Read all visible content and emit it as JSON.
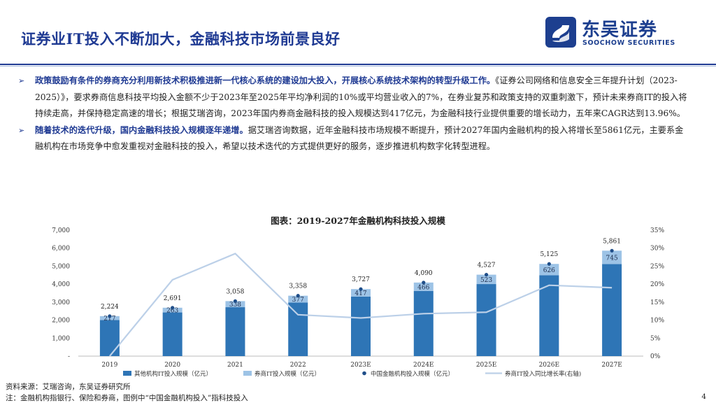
{
  "header": {
    "title": "证券业IT投入不断加大，金融科技市场前景良好",
    "logo_cn": "东吴证券",
    "logo_en": "SOOCHOW SECURITIES",
    "accent": "#1f3a93"
  },
  "bullets": [
    {
      "highlight": "政策鼓励有条件的券商充分利用新技术积极推进新一代核心系统的建设加大投入，开展核心系统技术架构的转型升级工作。",
      "text": "《证券公司网络和信息安全三年提升计划（2023-2025）》，要求券商信息科技平均投入金额不少于2023年至2025年平均净利润的10%或平均营业收入的7%，在券业复苏和政策支持的双重刺激下，预计未来券商IT的投入将持续走高，并保持稳定高速的增长；根据艾瑞咨询，2023年国内券商金融科技的投入规模达到417亿元，为金融科技行业提供重要的增长动力，五年来CAGR达到13.96%。"
    },
    {
      "highlight": "随着技术的迭代升级，国内金融科技投入规模逐年递增。",
      "text": "据艾瑞咨询数据，近年金融科技市场规模不断提升，预计2027年国内金融机构的投入将增长至5861亿元，主要系金融机构在市场竞争中愈发重视对金融科技的投入，希望以技术迭代的方式提供更好的服务，逐步推进机构数字化转型进程。"
    }
  ],
  "chart_title": "图表：2019-2027年金融机构科技投入规模",
  "chart_data": {
    "type": "bar",
    "categories": [
      "2019",
      "2020",
      "2021",
      "2022",
      "2023E",
      "2024E",
      "2025E",
      "2026E",
      "2027E"
    ],
    "series": [
      {
        "name": "其他机构IT投入规模（亿元）",
        "values": [
          2007,
          2428,
          2720,
          2981,
          3310,
          3624,
          4004,
          4499,
          5116
        ],
        "color": "#2e75b6"
      },
      {
        "name": "券商IT投入规模（亿元）",
        "values": [
          217,
          263,
          338,
          377,
          417,
          466,
          523,
          626,
          745
        ],
        "color": "#9dc3e6"
      },
      {
        "name": "中国金融机构投入规模（亿元）",
        "values": [
          2224,
          2691,
          3058,
          3358,
          3727,
          4090,
          4527,
          5125,
          5861
        ],
        "color": "#2e75b6"
      },
      {
        "name": "券商IT投入同比增长率(右轴)",
        "values": [
          0.0,
          21.2,
          28.5,
          11.5,
          10.6,
          11.8,
          12.2,
          19.7,
          19.0
        ],
        "color": "#bcd0e8"
      }
    ],
    "y_ticks": [
      "-",
      "1,000",
      "2,000",
      "3,000",
      "4,000",
      "5,000",
      "6,000",
      "7,000"
    ],
    "y2_ticks": [
      "0%",
      "5%",
      "10%",
      "15%",
      "20%",
      "25%",
      "30%",
      "35%"
    ],
    "ylim": [
      0,
      7000
    ],
    "y2lim": [
      0,
      35
    ],
    "total_labels": [
      "2,224",
      "2,691",
      "3,058",
      "3,358",
      "3,727",
      "4,090",
      "4,527",
      "5,125",
      "5,861"
    ],
    "broker_labels": [
      "217",
      "263",
      "338",
      "377",
      "417",
      "466",
      "523",
      "626",
      "745"
    ],
    "legend_position": "bottom"
  },
  "footer": {
    "source": "资料来源：艾瑞咨询，东吴证券研究所",
    "note": "注：金融机构指银行、保险和券商，图例中“中国金融机构投入”指科技投入",
    "page": "4"
  }
}
